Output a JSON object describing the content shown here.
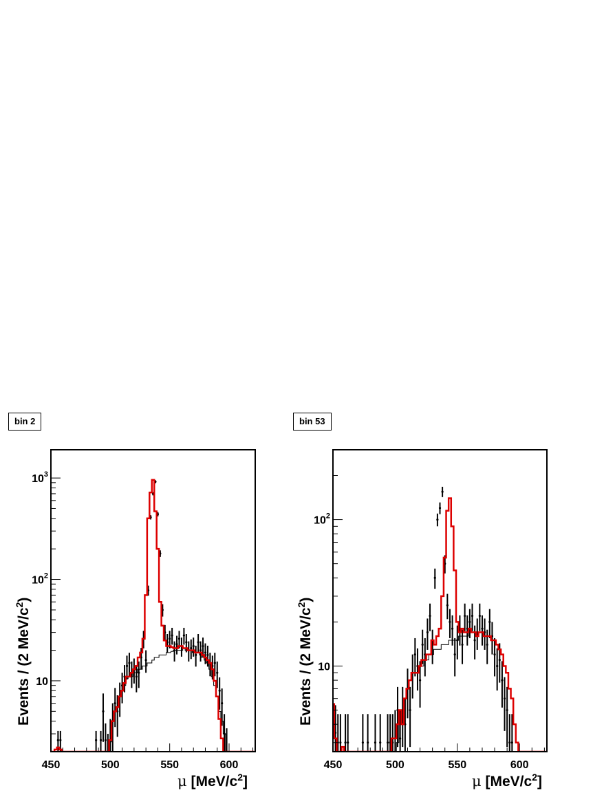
{
  "chart_data": [
    {
      "type": "line",
      "panel_label": "bin 2",
      "ylabel": {
        "pre": "Events / (2 MeV/c",
        "sup": "2",
        "post": ")"
      },
      "xlabel": {
        "symbol": "μ",
        "pre": " [MeV/c",
        "sup": "2",
        "post": "]"
      },
      "xlim": [
        450,
        622
      ],
      "ylim": [
        2,
        1900
      ],
      "yscale": "log",
      "grid": false,
      "x_ticks": [
        450,
        500,
        550,
        600
      ],
      "y_ticks": [
        {
          "value": 10,
          "base": "10",
          "exp": ""
        },
        {
          "value": 100,
          "base": "10",
          "exp": "2"
        },
        {
          "value": 1000,
          "base": "10",
          "exp": "3"
        }
      ],
      "series": [
        {
          "kind": "background",
          "color": "#000000",
          "x": [
            500,
            502,
            504,
            506,
            508,
            510,
            512,
            514,
            516,
            518,
            520,
            522,
            524,
            526,
            528,
            530,
            532,
            534,
            536,
            538,
            540,
            542,
            544,
            546,
            548,
            550,
            552,
            554,
            556,
            558,
            560,
            562,
            564,
            566,
            568,
            570,
            572,
            574,
            576,
            578,
            580,
            582,
            584,
            586,
            588,
            590,
            592,
            594,
            596,
            598,
            600
          ],
          "y": [
            2.5,
            4,
            5,
            5.5,
            7,
            8,
            9,
            10.5,
            11,
            11,
            12,
            12,
            13,
            13,
            14,
            14,
            15,
            15,
            16,
            17,
            17,
            18,
            18,
            18,
            19,
            19,
            19.5,
            20,
            20,
            20,
            20,
            21,
            20,
            20,
            20,
            19,
            19,
            19,
            18,
            17,
            16,
            15,
            13,
            11,
            9,
            7,
            5,
            4,
            3,
            2,
            0
          ]
        },
        {
          "kind": "fit",
          "color": "#dd0000",
          "x": [
            450,
            452,
            454,
            456,
            458,
            460,
            462,
            464,
            466,
            468,
            470,
            472,
            474,
            476,
            478,
            480,
            482,
            484,
            486,
            488,
            490,
            492,
            494,
            496,
            498,
            500,
            502,
            504,
            506,
            508,
            510,
            512,
            514,
            516,
            518,
            520,
            522,
            524,
            526,
            528,
            530,
            532,
            534,
            536,
            538,
            540,
            542,
            544,
            546,
            548,
            550,
            552,
            554,
            556,
            558,
            560,
            562,
            564,
            566,
            568,
            570,
            572,
            574,
            576,
            578,
            580,
            582,
            584,
            586,
            588,
            590,
            592,
            594,
            596,
            598,
            600,
            602,
            604,
            606,
            608,
            610,
            612,
            614,
            616,
            618,
            620
          ],
          "y": [
            2,
            2,
            2.1,
            2.2,
            2.1,
            2,
            2,
            2,
            2,
            2,
            2,
            2,
            2,
            2,
            2,
            2,
            2,
            2,
            2,
            2,
            2,
            2,
            2,
            2,
            2,
            2.6,
            4,
            5,
            5.5,
            7,
            8,
            9.5,
            11,
            11,
            12,
            13,
            14,
            17,
            19,
            26,
            70,
            400,
            720,
            960,
            470,
            200,
            60,
            35,
            25,
            22,
            22,
            21.5,
            21,
            21,
            22,
            22,
            21,
            21,
            20,
            20,
            20,
            19,
            19,
            19,
            18,
            17,
            16,
            15,
            13,
            10,
            7,
            4.2,
            2.7,
            2,
            2,
            2,
            2,
            2,
            2,
            2,
            2,
            2,
            2,
            2,
            2,
            2
          ]
        },
        {
          "kind": "data",
          "color": "#000000",
          "x": [
            450,
            456,
            458,
            478,
            488,
            492,
            494,
            496,
            498,
            500,
            502,
            504,
            506,
            508,
            510,
            512,
            514,
            516,
            518,
            520,
            522,
            524,
            526,
            528,
            530,
            532,
            534,
            536,
            538,
            540,
            542,
            544,
            546,
            548,
            550,
            552,
            554,
            556,
            558,
            560,
            562,
            564,
            566,
            568,
            570,
            572,
            574,
            576,
            578,
            580,
            582,
            584,
            586,
            588,
            590,
            592,
            594,
            596,
            598
          ],
          "y": [
            0,
            2.6,
            2.6,
            0,
            2.6,
            2.6,
            5,
            2.6,
            2,
            2.6,
            4,
            6,
            5,
            7,
            9,
            11,
            14,
            15,
            12,
            13,
            11,
            12,
            17,
            26,
            16,
            78,
            410,
            700,
            920,
            440,
            180,
            50,
            30,
            24,
            26,
            28,
            20,
            23,
            26,
            22,
            28,
            24,
            20,
            21,
            22,
            18,
            24,
            20,
            22,
            19,
            18,
            15,
            14,
            15,
            12,
            8,
            6,
            3,
            2
          ],
          "err": [
            0,
            0.6,
            0.6,
            0,
            0.6,
            0.6,
            2.5,
            1.2,
            1,
            1.6,
            2,
            2.5,
            2.2,
            2.6,
            3,
            3.3,
            3.7,
            3.9,
            3.5,
            3.6,
            3.3,
            3.5,
            4.1,
            5.1,
            4,
            8.8,
            20,
            26,
            30,
            21,
            13.4,
            7,
            5.5,
            4.9,
            5.1,
            5.3,
            4.5,
            4.8,
            5.1,
            4.7,
            5.3,
            4.9,
            4.5,
            4.6,
            4.7,
            4.2,
            4.9,
            4.5,
            4.7,
            4.4,
            4.2,
            3.9,
            3.7,
            3.9,
            3.5,
            2.8,
            2.4,
            1.7,
            1.4
          ]
        }
      ]
    },
    {
      "type": "line",
      "panel_label": "bin 53",
      "ylabel": {
        "pre": "Events / (2 MeV/c",
        "sup": "2",
        "post": ")"
      },
      "xlabel": {
        "symbol": "μ",
        "pre": " [MeV/c",
        "sup": "2",
        "post": "]"
      },
      "xlim": [
        450,
        622
      ],
      "ylim": [
        2.6,
        300
      ],
      "yscale": "log",
      "grid": false,
      "x_ticks": [
        450,
        500,
        550,
        600
      ],
      "y_ticks": [
        {
          "value": 10,
          "base": "10",
          "exp": ""
        },
        {
          "value": 100,
          "base": "10",
          "exp": "2"
        }
      ],
      "series": [
        {
          "kind": "background",
          "color": "#000000",
          "x": [
            498,
            500,
            502,
            504,
            506,
            508,
            510,
            512,
            514,
            516,
            518,
            520,
            522,
            524,
            526,
            528,
            530,
            532,
            534,
            536,
            538,
            540,
            542,
            544,
            546,
            548,
            550,
            552,
            554,
            556,
            558,
            560,
            562,
            564,
            566,
            568,
            570,
            572,
            574,
            576,
            578,
            580,
            582,
            584,
            586,
            588,
            590,
            592,
            594,
            596,
            598,
            600
          ],
          "y": [
            2,
            2.5,
            3,
            4,
            5,
            6,
            7,
            8,
            9,
            9,
            9,
            10,
            10,
            11,
            11,
            12,
            12,
            13,
            13,
            13,
            14,
            14,
            14,
            15,
            15,
            15,
            15,
            16,
            16,
            16,
            16,
            17,
            17,
            17,
            16,
            17,
            17,
            16,
            16,
            16,
            15,
            15,
            14,
            13,
            12,
            10,
            9,
            7,
            6,
            4,
            3,
            2
          ]
        },
        {
          "kind": "fit",
          "color": "#dd0000",
          "x": [
            450,
            452,
            454,
            456,
            458,
            460,
            462,
            464,
            466,
            468,
            470,
            472,
            474,
            476,
            478,
            480,
            482,
            484,
            486,
            488,
            490,
            492,
            494,
            496,
            498,
            500,
            502,
            504,
            506,
            508,
            510,
            512,
            514,
            516,
            518,
            520,
            522,
            524,
            526,
            528,
            530,
            532,
            534,
            536,
            538,
            540,
            542,
            544,
            546,
            548,
            550,
            552,
            554,
            556,
            558,
            560,
            562,
            564,
            566,
            568,
            570,
            572,
            574,
            576,
            578,
            580,
            582,
            584,
            586,
            588,
            590,
            592,
            594,
            596,
            598,
            600,
            602,
            604,
            606,
            608,
            610,
            612,
            614,
            616,
            618,
            620
          ],
          "y": [
            5.5,
            3.2,
            2.6,
            2.6,
            2.8,
            2.6,
            2.6,
            2.6,
            2.6,
            2.6,
            2.6,
            2.6,
            2.6,
            2.6,
            2.6,
            2.6,
            2.6,
            2.6,
            2.6,
            2.6,
            2.6,
            2.6,
            2.6,
            2.6,
            3.2,
            3.2,
            4,
            5,
            4,
            6,
            7,
            8,
            9,
            9,
            9,
            10,
            11,
            11,
            12,
            12,
            15,
            14,
            16,
            18,
            30,
            55,
            115,
            140,
            90,
            45,
            20,
            17,
            18,
            17,
            17,
            18,
            17,
            17,
            16,
            17,
            17,
            16,
            16,
            16,
            15,
            15,
            14,
            13,
            12,
            10,
            9,
            7,
            6,
            4,
            3,
            2.6,
            2.6,
            2.6,
            2.6,
            2.6,
            2.6,
            2.6,
            2.6,
            2.6,
            2.6,
            2.6
          ]
        },
        {
          "kind": "data",
          "color": "#000000",
          "x": [
            450,
            452,
            454,
            456,
            460,
            462,
            474,
            478,
            484,
            488,
            494,
            496,
            498,
            500,
            502,
            504,
            506,
            508,
            510,
            512,
            514,
            516,
            518,
            520,
            522,
            524,
            526,
            528,
            530,
            532,
            534,
            536,
            538,
            540,
            542,
            544,
            546,
            548,
            550,
            552,
            554,
            556,
            558,
            560,
            562,
            564,
            566,
            568,
            570,
            572,
            574,
            576,
            578,
            580,
            582,
            584,
            586,
            588,
            590,
            592,
            594,
            596,
            598
          ],
          "y": [
            5,
            3.5,
            3,
            3,
            3,
            3,
            3,
            3,
            3,
            3,
            3,
            3,
            3,
            3.2,
            5,
            3.2,
            5,
            4,
            7,
            5,
            9,
            12,
            10,
            8,
            14,
            12,
            17,
            22,
            14,
            40,
            100,
            120,
            155,
            50,
            26,
            20,
            18,
            12,
            15,
            18,
            14,
            22,
            18,
            20,
            22,
            15,
            17,
            22,
            18,
            17,
            14,
            20,
            16,
            12,
            10,
            11,
            8,
            6,
            5,
            3,
            3,
            0,
            0
          ],
          "err": [
            2.2,
            1.9,
            1.7,
            1.7,
            1.7,
            1.7,
            1.7,
            1.7,
            1.7,
            1.7,
            1.7,
            1.7,
            1.7,
            1.8,
            2.2,
            1.8,
            2.2,
            2,
            2.6,
            2.2,
            3,
            3.5,
            3.2,
            2.8,
            3.7,
            3.5,
            4.1,
            4.7,
            3.7,
            6.3,
            10,
            11,
            12.5,
            7.1,
            5.1,
            4.5,
            4.2,
            3.5,
            3.9,
            4.2,
            3.7,
            4.7,
            4.2,
            4.5,
            4.7,
            3.9,
            4.1,
            4.7,
            4.2,
            4.1,
            3.7,
            4.5,
            4,
            3.5,
            3.2,
            3.3,
            2.8,
            2.4,
            2.2,
            1.7,
            1.7,
            0,
            0
          ]
        }
      ]
    }
  ]
}
